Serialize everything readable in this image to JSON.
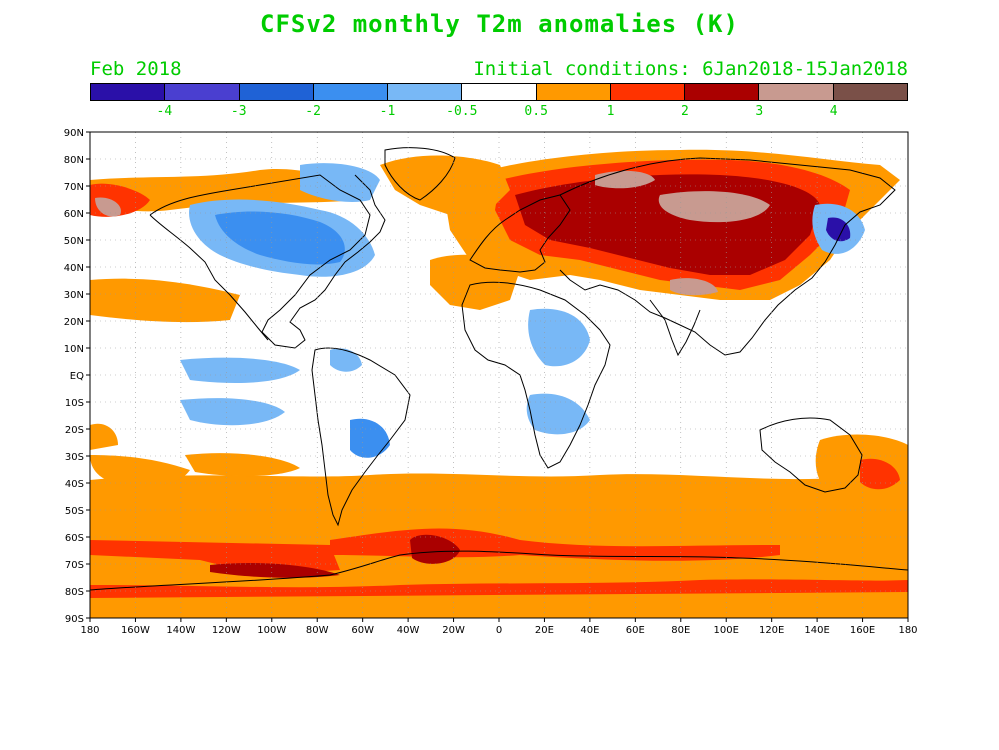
{
  "title": "CFSv2 monthly T2m anomalies (K)",
  "valid_month": "Feb 2018",
  "initial_conditions": "Initial conditions: 6Jan2018-15Jan2018",
  "colorbar": {
    "colors": [
      "#2a10a8",
      "#4a3fd0",
      "#1f62d6",
      "#3b8ff0",
      "#78b8f6",
      "#ffffff",
      "#ff9900",
      "#ff3300",
      "#aa0000",
      "#c89a90",
      "#7a5048"
    ],
    "labels": [
      "-4",
      "-3",
      "-2",
      "-1",
      "-0.5",
      "0.5",
      "1",
      "2",
      "3",
      "4"
    ]
  },
  "axes": {
    "lat_labels": [
      "90N",
      "80N",
      "70N",
      "60N",
      "50N",
      "40N",
      "30N",
      "20N",
      "10N",
      "EQ",
      "10S",
      "20S",
      "30S",
      "40S",
      "50S",
      "60S",
      "70S",
      "80S",
      "90S"
    ],
    "lon_labels": [
      "180",
      "160W",
      "140W",
      "120W",
      "100W",
      "80W",
      "60W",
      "40W",
      "20W",
      "0",
      "20E",
      "40E",
      "60E",
      "80E",
      "100E",
      "120E",
      "140E",
      "160E",
      "180"
    ]
  }
}
